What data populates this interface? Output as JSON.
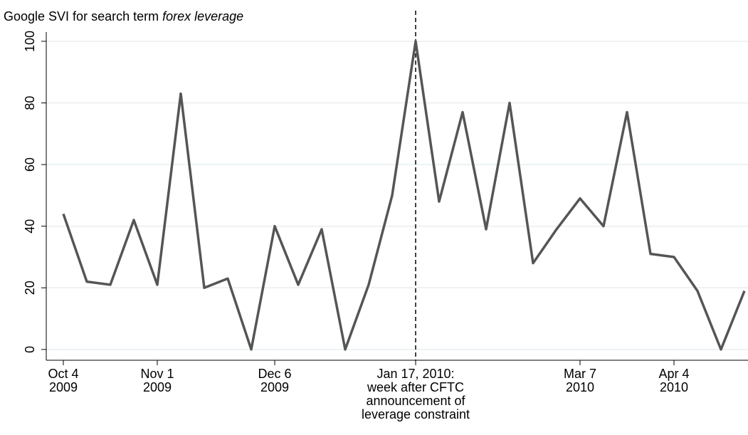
{
  "chart_data": {
    "type": "line",
    "title": "Google SVI for search term",
    "title_emphasis": "forex leverage",
    "categories": [
      "Oct 4\n2009",
      null,
      null,
      null,
      "Nov 1\n2009",
      null,
      null,
      null,
      null,
      "Dec 6\n2009",
      null,
      null,
      null,
      null,
      null,
      "Jan 17, 2010:\nweek after CFTC\nannouncement of\nleverage constraint",
      null,
      null,
      null,
      null,
      null,
      null,
      "Mar 7\n2010",
      null,
      null,
      null,
      "Apr 4\n2010",
      null,
      null,
      null
    ],
    "series": [
      {
        "name": "Google SVI",
        "color": "#555555",
        "values": [
          44,
          22,
          21,
          42,
          21,
          83,
          20,
          23,
          0,
          40,
          21,
          39,
          0,
          21,
          50,
          100,
          48,
          77,
          39,
          80,
          28,
          39,
          49,
          40,
          77,
          31,
          30,
          19,
          0,
          19
        ]
      }
    ],
    "ylim": [
      -3.5,
      103
    ],
    "yticks": [
      0,
      20,
      40,
      60,
      80,
      100
    ],
    "grid": true,
    "reference_line": {
      "category_index": 15,
      "style": "dashed"
    }
  }
}
